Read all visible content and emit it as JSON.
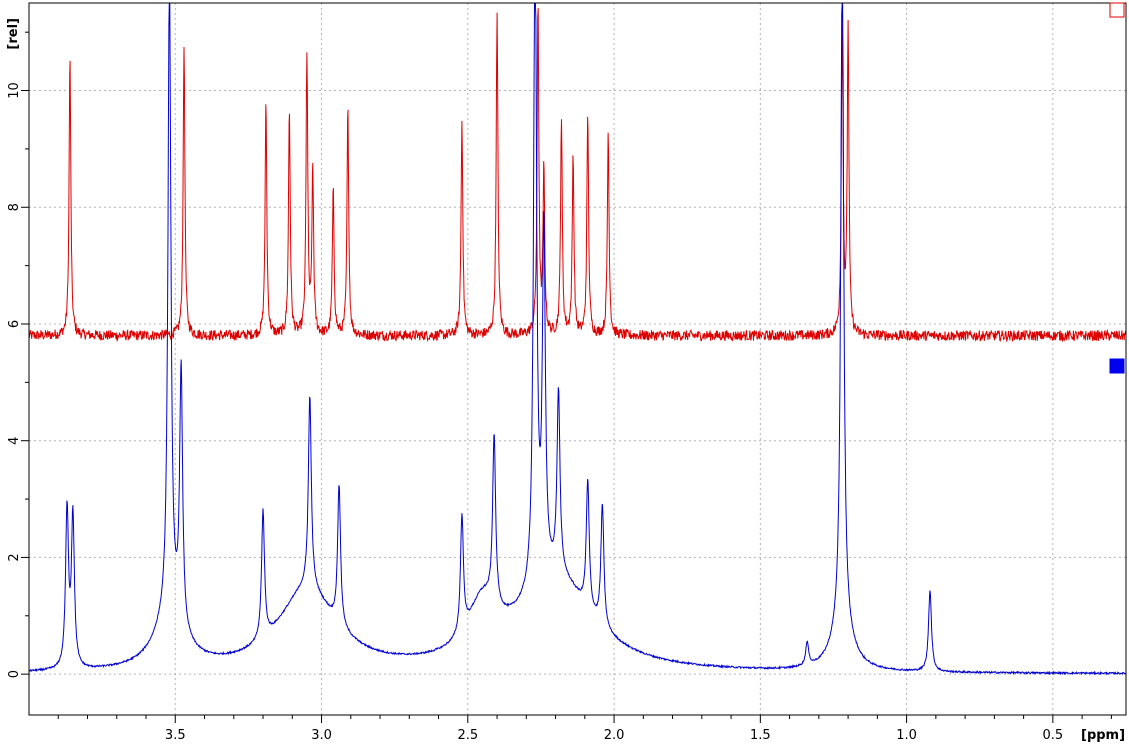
{
  "chart_data": {
    "type": "line",
    "xlabel": "[ppm]",
    "ylabel": "[rel]",
    "xlim": [
      4.0,
      0.25
    ],
    "ylim": [
      -0.7,
      11.5
    ],
    "x_ticks": [
      3.5,
      3.0,
      2.5,
      2.0,
      1.5,
      1.0,
      0.5
    ],
    "x_tick_labels": [
      "3.5",
      "3.0",
      "2.5",
      "2.0",
      "1.5",
      "1.0",
      "0.5"
    ],
    "y_ticks": [
      0,
      2,
      4,
      6,
      8,
      10
    ],
    "y_tick_labels": [
      "0",
      "2",
      "4",
      "6",
      "8",
      "10"
    ],
    "grid": true,
    "series": [
      {
        "color": "#dd0000",
        "baseline": 5.8,
        "peaks": [
          {
            "x": 3.86,
            "y": 10.6
          },
          {
            "x": 3.47,
            "y": 10.8
          },
          {
            "x": 3.19,
            "y": 9.8
          },
          {
            "x": 3.11,
            "y": 9.7
          },
          {
            "x": 3.05,
            "y": 10.6
          },
          {
            "x": 3.03,
            "y": 8.6
          },
          {
            "x": 2.96,
            "y": 8.3
          },
          {
            "x": 2.91,
            "y": 9.7
          },
          {
            "x": 2.52,
            "y": 9.5
          },
          {
            "x": 2.4,
            "y": 11.3
          },
          {
            "x": 2.26,
            "y": 11.5
          },
          {
            "x": 2.24,
            "y": 8.6
          },
          {
            "x": 2.18,
            "y": 9.5
          },
          {
            "x": 2.14,
            "y": 8.9
          },
          {
            "x": 2.09,
            "y": 9.6
          },
          {
            "x": 2.02,
            "y": 9.3
          },
          {
            "x": 1.22,
            "y": 11.3
          },
          {
            "x": 1.2,
            "y": 11.0
          }
        ]
      },
      {
        "color": "#0000cc",
        "baseline": 0.0,
        "peaks": [
          {
            "x": 3.87,
            "y": 2.7
          },
          {
            "x": 3.85,
            "y": 2.6
          },
          {
            "x": 3.52,
            "y": 11.0
          },
          {
            "x": 3.48,
            "y": 4.4
          },
          {
            "x": 3.2,
            "y": 2.2
          },
          {
            "x": 3.04,
            "y": 3.3
          },
          {
            "x": 2.94,
            "y": 2.4
          },
          {
            "x": 2.52,
            "y": 2.0
          },
          {
            "x": 2.41,
            "y": 2.9
          },
          {
            "x": 2.27,
            "y": 11.5
          },
          {
            "x": 2.24,
            "y": 5.9
          },
          {
            "x": 2.19,
            "y": 3.1
          },
          {
            "x": 2.09,
            "y": 2.2
          },
          {
            "x": 2.04,
            "y": 2.1
          },
          {
            "x": 1.22,
            "y": 11.5
          },
          {
            "x": 1.34,
            "y": 0.4
          },
          {
            "x": 0.92,
            "y": 1.4
          }
        ]
      }
    ]
  },
  "legend_markers": [
    {
      "color": "#dd0000",
      "style": "outline"
    },
    {
      "color": "#0000ee",
      "style": "filled"
    }
  ]
}
